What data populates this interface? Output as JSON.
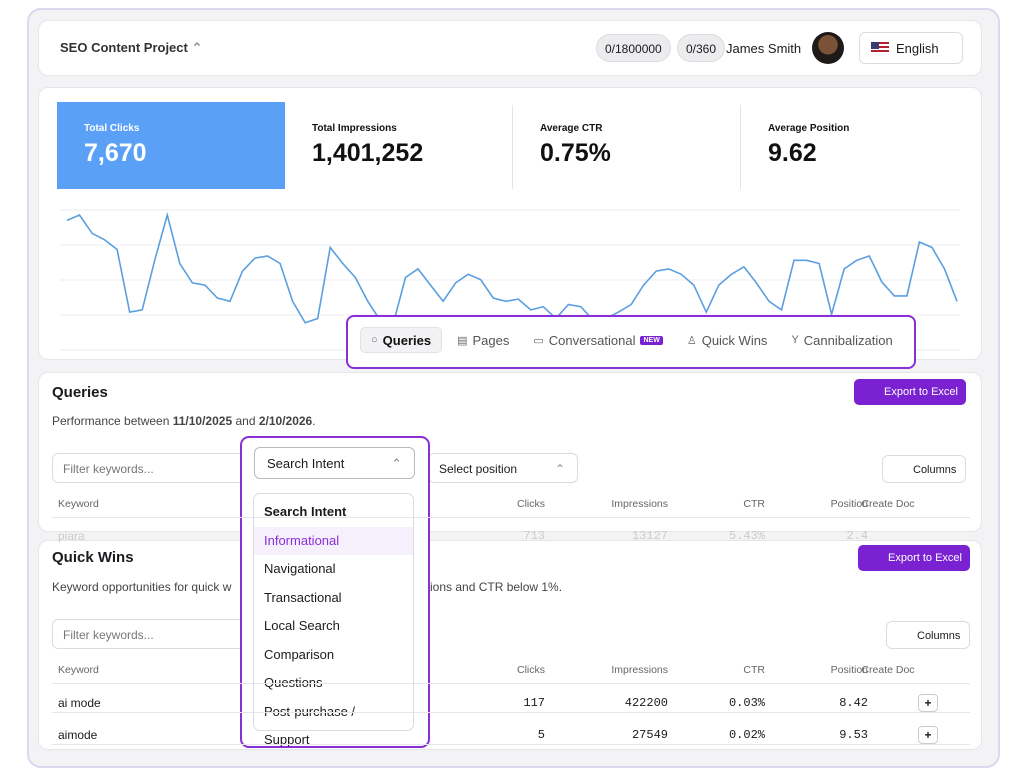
{
  "header": {
    "project": "SEO Content Project",
    "credits": "0/1800000",
    "docs": "0/360",
    "user": "James Smith",
    "language": "English"
  },
  "stats": [
    {
      "label": "Total Clicks",
      "value": "7,670"
    },
    {
      "label": "Total Impressions",
      "value": "1,401,252"
    },
    {
      "label": "Average CTR",
      "value": "0.75%"
    },
    {
      "label": "Average Position",
      "value": "9.62"
    }
  ],
  "trend": {
    "values": [
      135,
      140,
      123,
      117,
      108,
      50,
      52,
      98,
      140,
      95,
      77,
      75,
      63,
      60,
      88,
      100,
      102,
      95,
      60,
      40,
      44,
      110,
      95,
      82,
      60,
      42,
      38,
      82,
      90,
      75,
      60,
      77,
      85,
      80,
      63,
      60,
      62,
      52,
      55,
      44,
      57,
      55,
      42,
      44,
      50,
      57,
      75,
      88,
      90,
      85,
      75,
      50,
      75,
      85,
      92,
      77,
      60,
      52,
      98,
      98,
      95,
      48,
      90,
      98,
      102,
      78,
      65,
      65,
      115,
      110,
      90,
      60
    ]
  },
  "tabs": [
    "Queries",
    "Pages",
    "Conversational",
    "Quick Wins",
    "Cannibalization"
  ],
  "new_badge": "NEW",
  "queries": {
    "title": "Queries",
    "performance": [
      "Performance between ",
      "11/10/2025",
      " and ",
      "2/10/2026",
      "."
    ],
    "export": "Export to Excel",
    "filter": "Filter keywords...",
    "intent": "Search Intent",
    "position": "Select position",
    "columns": "Columns",
    "headers": [
      "Keyword",
      "Clicks",
      "Impressions",
      "CTR",
      "Position",
      "Create Doc"
    ],
    "rows": [
      [
        "piara",
        713,
        13127,
        "5.43%",
        2.4
      ]
    ]
  },
  "quick_wins": {
    "title": "Quick Wins",
    "description": [
      "Keyword opportunities for quick w",
      "ions and CTR below 1%."
    ],
    "export": "Export to Excel",
    "filter": "Filter keywords...",
    "columns": "Columns",
    "headers": [
      "Keyword",
      "Clicks",
      "Impressions",
      "CTR",
      "Position",
      "Create Doc"
    ],
    "rows": [
      [
        "ai mode",
        117,
        422200,
        "0.03%",
        8.42
      ],
      [
        "aimode",
        5,
        27549,
        "0.02%",
        9.53
      ]
    ],
    "add": "+"
  },
  "dropdown": {
    "title": "Search Intent",
    "items": [
      "Informational",
      "Navigational",
      "Transactional",
      "Local Search",
      "Comparison",
      "Questions",
      "Post-purchase / Support"
    ]
  }
}
